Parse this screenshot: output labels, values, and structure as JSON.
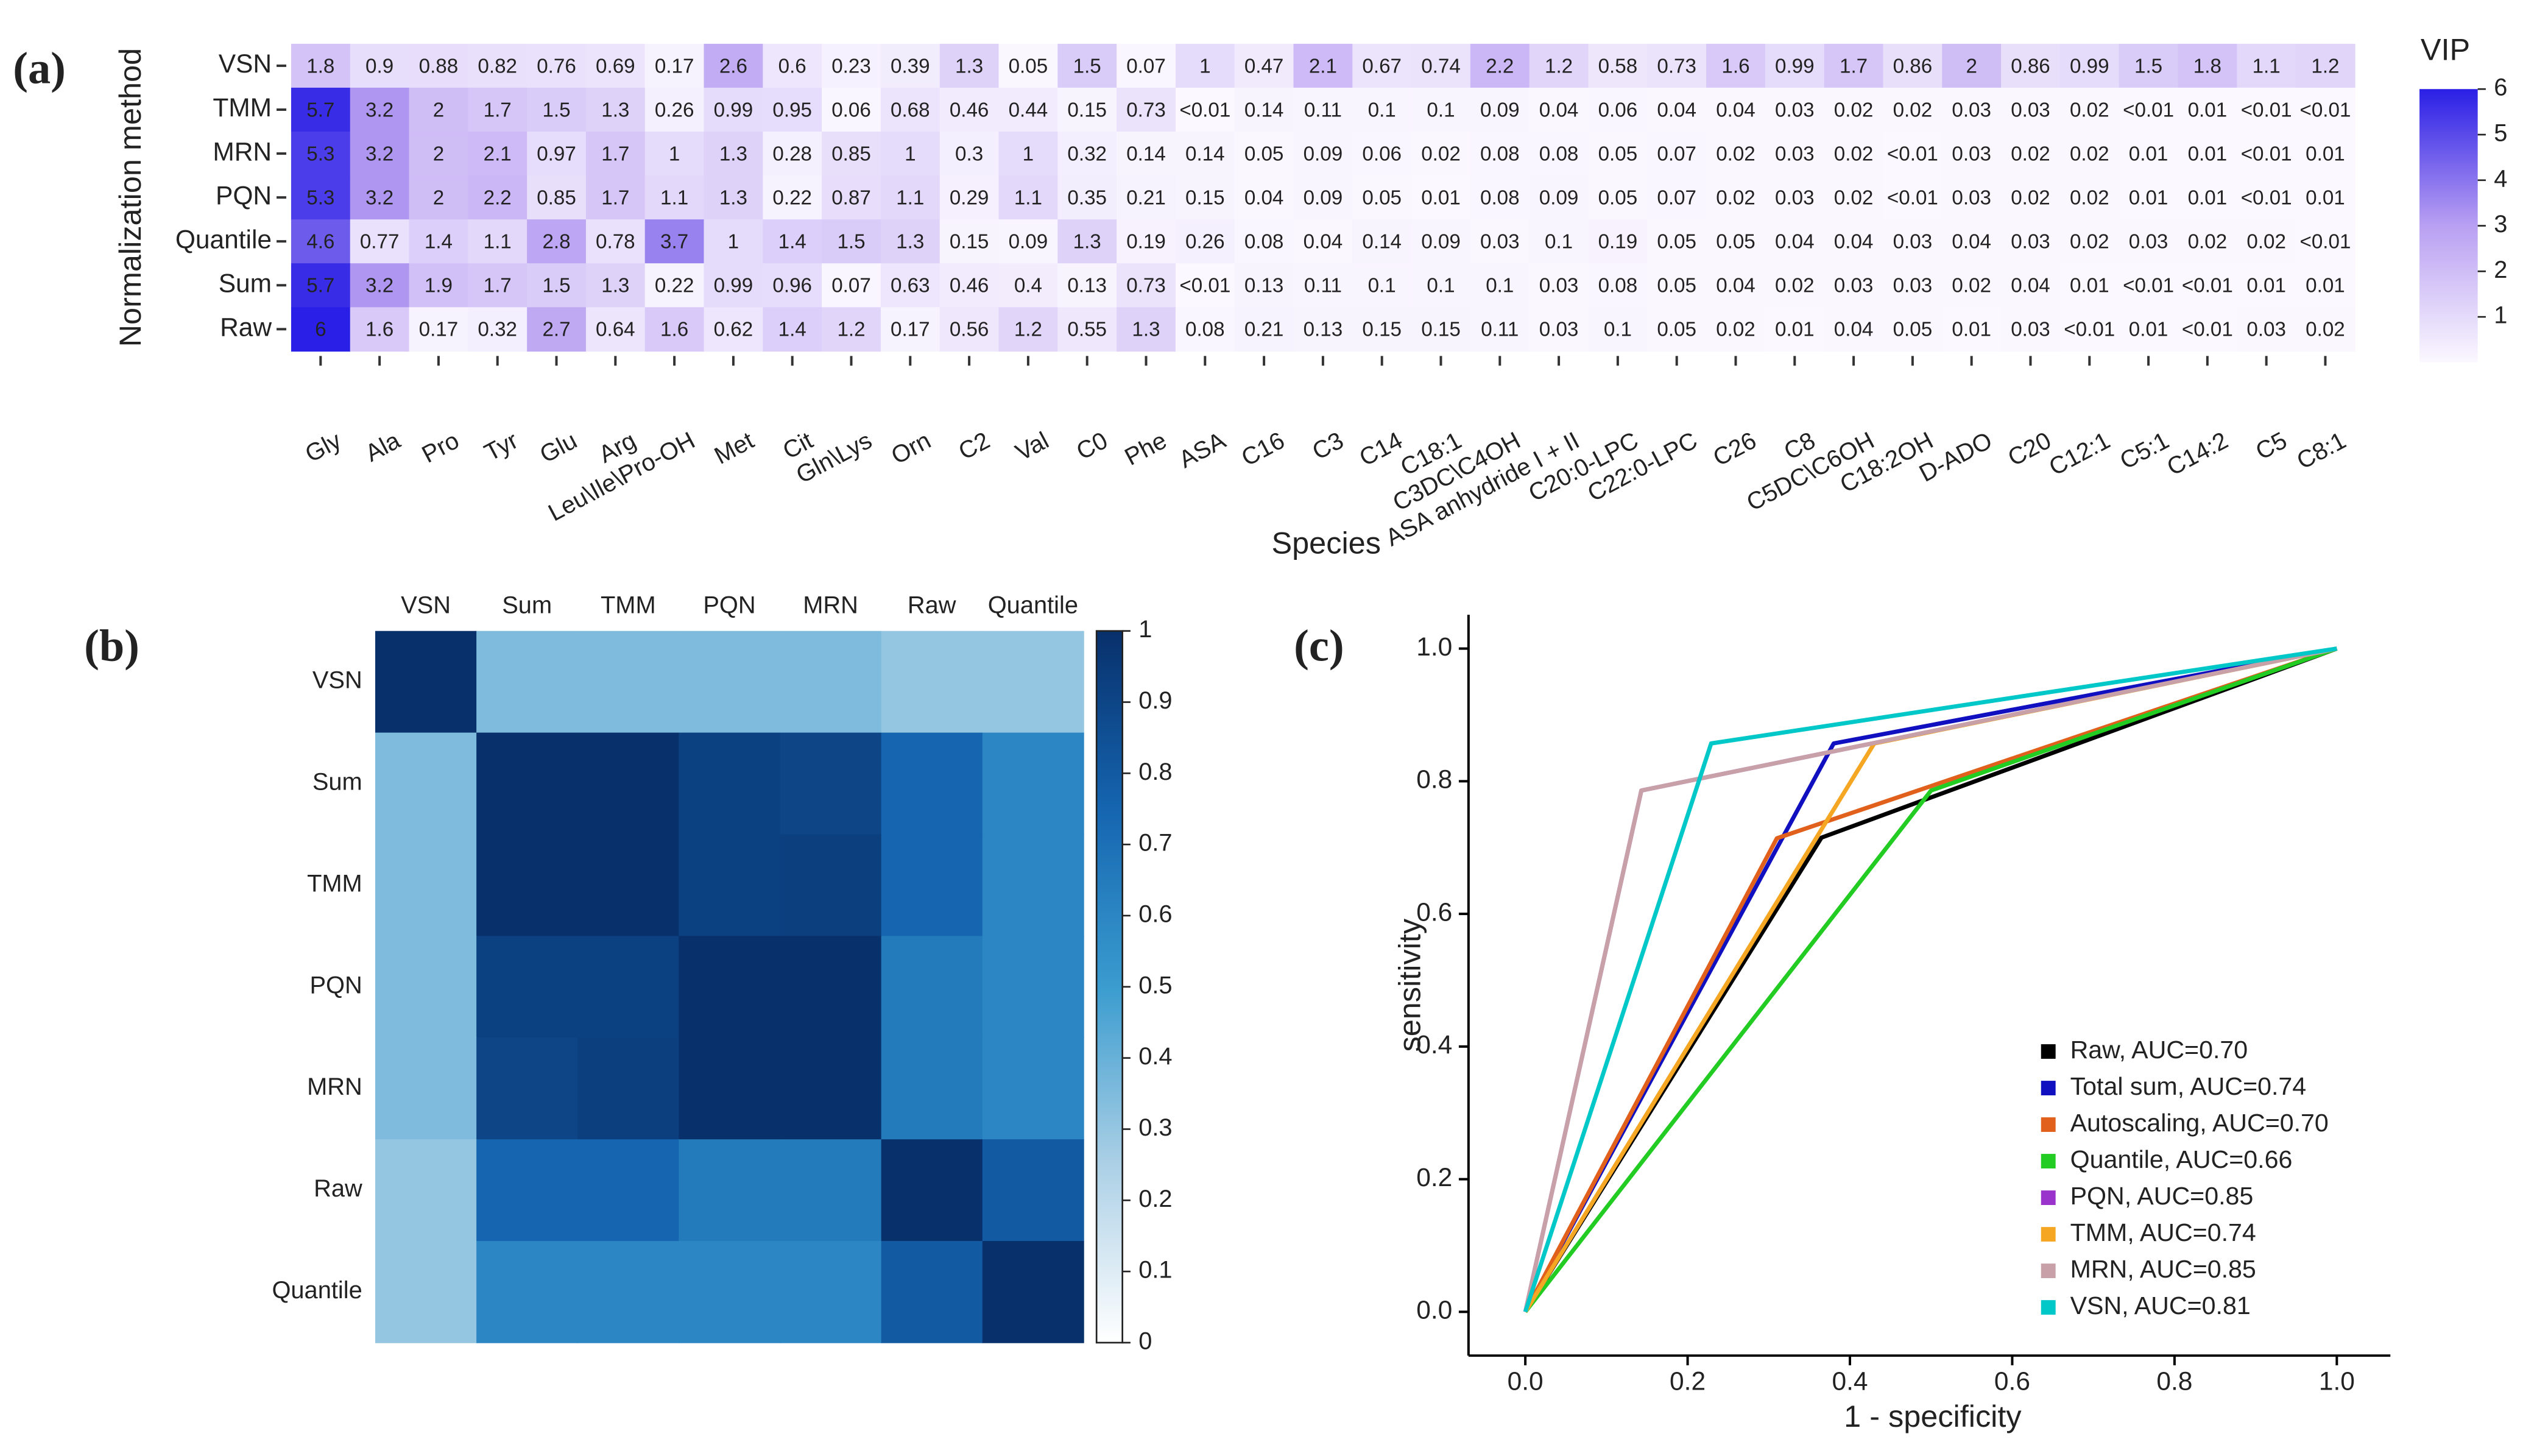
{
  "chart_data": [
    {
      "type": "heatmap",
      "panel_label": "(a)",
      "xlabel": "Species",
      "ylabel": "Normalization method",
      "rows": [
        "VSN",
        "TMM",
        "MRN",
        "PQN",
        "Quantile",
        "Sum",
        "Raw"
      ],
      "columns": [
        "Gly",
        "Ala",
        "Pro",
        "Tyr",
        "Glu",
        "Arg",
        "Leu\\Ile\\Pro-OH",
        "Met",
        "Cit",
        "Gln\\Lys",
        "Orn",
        "C2",
        "Val",
        "C0",
        "Phe",
        "ASA",
        "C16",
        "C3",
        "C14",
        "C18:1",
        "C3DC\\C4OH",
        "ASA anhydride I + II",
        "C20:0-LPC",
        "C22:0-LPC",
        "C26",
        "C8",
        "C5DC\\C6OH",
        "C18:2OH",
        "D-ADO",
        "C20",
        "C12:1",
        "C5:1",
        "C14:2",
        "C5",
        "C8:1"
      ],
      "values": [
        [
          1.8,
          0.9,
          0.88,
          0.82,
          0.76,
          0.69,
          0.17,
          2.6,
          0.6,
          0.23,
          0.39,
          1.3,
          0.05,
          1.5,
          0.07,
          1,
          0.47,
          2.1,
          0.67,
          0.74,
          2.2,
          1.2,
          0.58,
          0.73,
          1.6,
          0.99,
          1.7,
          0.86,
          2,
          0.86,
          0.99,
          1.5,
          1.8,
          1.1,
          1.2
        ],
        [
          5.7,
          3.2,
          2,
          1.7,
          1.5,
          1.3,
          0.26,
          0.99,
          0.95,
          0.06,
          0.68,
          0.46,
          0.44,
          0.15,
          0.73,
          0.01,
          0.14,
          0.11,
          0.1,
          0.1,
          0.09,
          0.04,
          0.06,
          0.04,
          0.04,
          0.03,
          0.02,
          0.02,
          0.03,
          0.03,
          0.02,
          0.01,
          0.01,
          0.01,
          0.01
        ],
        [
          5.3,
          3.2,
          2,
          2.1,
          0.97,
          1.7,
          1,
          1.3,
          0.28,
          0.85,
          1,
          0.3,
          1,
          0.32,
          0.14,
          0.14,
          0.05,
          0.09,
          0.06,
          0.02,
          0.08,
          0.08,
          0.05,
          0.07,
          0.02,
          0.03,
          0.02,
          0.01,
          0.03,
          0.02,
          0.02,
          0.01,
          0.01,
          0.01,
          0.01
        ],
        [
          5.3,
          3.2,
          2,
          2.2,
          0.85,
          1.7,
          1.1,
          1.3,
          0.22,
          0.87,
          1.1,
          0.29,
          1.1,
          0.35,
          0.21,
          0.15,
          0.04,
          0.09,
          0.05,
          0.01,
          0.08,
          0.09,
          0.05,
          0.07,
          0.02,
          0.03,
          0.02,
          0.01,
          0.03,
          0.02,
          0.02,
          0.01,
          0.01,
          0.01,
          0.01
        ],
        [
          4.6,
          0.77,
          1.4,
          1.1,
          2.8,
          0.78,
          3.7,
          1,
          1.4,
          1.5,
          1.3,
          0.15,
          0.09,
          1.3,
          0.19,
          0.26,
          0.08,
          0.04,
          0.14,
          0.09,
          0.03,
          0.1,
          0.19,
          0.05,
          0.05,
          0.04,
          0.04,
          0.03,
          0.04,
          0.03,
          0.02,
          0.03,
          0.02,
          0.02,
          0.01
        ],
        [
          5.7,
          3.2,
          1.9,
          1.7,
          1.5,
          1.3,
          0.22,
          0.99,
          0.96,
          0.07,
          0.63,
          0.46,
          0.4,
          0.13,
          0.73,
          0.01,
          0.13,
          0.11,
          0.1,
          0.1,
          0.1,
          0.03,
          0.08,
          0.05,
          0.04,
          0.02,
          0.03,
          0.03,
          0.02,
          0.04,
          0.01,
          0.01,
          0.01,
          0.01,
          0.01
        ],
        [
          6,
          1.6,
          0.17,
          0.32,
          2.7,
          0.64,
          1.6,
          0.62,
          1.4,
          1.2,
          0.17,
          0.56,
          1.2,
          0.55,
          1.3,
          0.08,
          0.21,
          0.13,
          0.15,
          0.15,
          0.11,
          0.03,
          0.1,
          0.05,
          0.02,
          0.01,
          0.04,
          0.05,
          0.01,
          0.03,
          0.01,
          0.01,
          0.01,
          0.03,
          0.02
        ]
      ],
      "value_labels": [
        [
          "1.8",
          "0.9",
          "0.88",
          "0.82",
          "0.76",
          "0.69",
          "0.17",
          "2.6",
          "0.6",
          "0.23",
          "0.39",
          "1.3",
          "0.05",
          "1.5",
          "0.07",
          "1",
          "0.47",
          "2.1",
          "0.67",
          "0.74",
          "2.2",
          "1.2",
          "0.58",
          "0.73",
          "1.6",
          "0.99",
          "1.7",
          "0.86",
          "2",
          "0.86",
          "0.99",
          "1.5",
          "1.8",
          "1.1",
          "1.2"
        ],
        [
          "5.7",
          "3.2",
          "2",
          "1.7",
          "1.5",
          "1.3",
          "0.26",
          "0.99",
          "0.95",
          "0.06",
          "0.68",
          "0.46",
          "0.44",
          "0.15",
          "0.73",
          "<0.01",
          "0.14",
          "0.11",
          "0.1",
          "0.1",
          "0.09",
          "0.04",
          "0.06",
          "0.04",
          "0.04",
          "0.03",
          "0.02",
          "0.02",
          "0.03",
          "0.03",
          "0.02",
          "<0.01",
          "0.01",
          "<0.01",
          "<0.01"
        ],
        [
          "5.3",
          "3.2",
          "2",
          "2.1",
          "0.97",
          "1.7",
          "1",
          "1.3",
          "0.28",
          "0.85",
          "1",
          "0.3",
          "1",
          "0.32",
          "0.14",
          "0.14",
          "0.05",
          "0.09",
          "0.06",
          "0.02",
          "0.08",
          "0.08",
          "0.05",
          "0.07",
          "0.02",
          "0.03",
          "0.02",
          "<0.01",
          "0.03",
          "0.02",
          "0.02",
          "0.01",
          "0.01",
          "<0.01",
          "0.01"
        ],
        [
          "5.3",
          "3.2",
          "2",
          "2.2",
          "0.85",
          "1.7",
          "1.1",
          "1.3",
          "0.22",
          "0.87",
          "1.1",
          "0.29",
          "1.1",
          "0.35",
          "0.21",
          "0.15",
          "0.04",
          "0.09",
          "0.05",
          "0.01",
          "0.08",
          "0.09",
          "0.05",
          "0.07",
          "0.02",
          "0.03",
          "0.02",
          "<0.01",
          "0.03",
          "0.02",
          "0.02",
          "0.01",
          "0.01",
          "<0.01",
          "0.01"
        ],
        [
          "4.6",
          "0.77",
          "1.4",
          "1.1",
          "2.8",
          "0.78",
          "3.7",
          "1",
          "1.4",
          "1.5",
          "1.3",
          "0.15",
          "0.09",
          "1.3",
          "0.19",
          "0.26",
          "0.08",
          "0.04",
          "0.14",
          "0.09",
          "0.03",
          "0.1",
          "0.19",
          "0.05",
          "0.05",
          "0.04",
          "0.04",
          "0.03",
          "0.04",
          "0.03",
          "0.02",
          "0.03",
          "0.02",
          "0.02",
          "<0.01"
        ],
        [
          "5.7",
          "3.2",
          "1.9",
          "1.7",
          "1.5",
          "1.3",
          "0.22",
          "0.99",
          "0.96",
          "0.07",
          "0.63",
          "0.46",
          "0.4",
          "0.13",
          "0.73",
          "<0.01",
          "0.13",
          "0.11",
          "0.1",
          "0.1",
          "0.1",
          "0.03",
          "0.08",
          "0.05",
          "0.04",
          "0.02",
          "0.03",
          "0.03",
          "0.02",
          "0.04",
          "0.01",
          "<0.01",
          "<0.01",
          "0.01",
          "0.01"
        ],
        [
          "6",
          "1.6",
          "0.17",
          "0.32",
          "2.7",
          "0.64",
          "1.6",
          "0.62",
          "1.4",
          "1.2",
          "0.17",
          "0.56",
          "1.2",
          "0.55",
          "1.3",
          "0.08",
          "0.21",
          "0.13",
          "0.15",
          "0.15",
          "0.11",
          "0.03",
          "0.1",
          "0.05",
          "0.02",
          "0.01",
          "0.04",
          "0.05",
          "0.01",
          "0.03",
          "<0.01",
          "0.01",
          "<0.01",
          "0.03",
          "0.02"
        ]
      ],
      "colorbar_title": "VIP",
      "clim": [
        0,
        6
      ],
      "cticks": [
        1,
        2,
        3,
        4,
        5,
        6
      ],
      "colorscale": [
        "#fbf8ff",
        "#b9a0f2",
        "#2a1fe6"
      ]
    },
    {
      "type": "heatmap",
      "panel_label": "(b)",
      "rows": [
        "VSN",
        "Sum",
        "TMM",
        "PQN",
        "MRN",
        "Raw",
        "Quantile"
      ],
      "columns": [
        "VSN",
        "Sum",
        "TMM",
        "PQN",
        "MRN",
        "Raw",
        "Quantile"
      ],
      "values": [
        [
          1,
          0.35,
          0.35,
          0.35,
          0.35,
          0.3,
          0.3
        ],
        [
          0.35,
          1,
          1,
          0.92,
          0.9,
          0.75,
          0.6
        ],
        [
          0.35,
          1,
          1,
          0.92,
          0.93,
          0.75,
          0.6
        ],
        [
          0.35,
          0.92,
          0.92,
          1,
          1,
          0.65,
          0.6
        ],
        [
          0.35,
          0.9,
          0.93,
          1,
          1,
          0.65,
          0.6
        ],
        [
          0.3,
          0.75,
          0.75,
          0.65,
          0.65,
          1,
          0.8
        ],
        [
          0.3,
          0.6,
          0.6,
          0.6,
          0.6,
          0.8,
          1
        ]
      ],
      "clim": [
        0,
        1
      ],
      "cticks": [
        0,
        0.1,
        0.2,
        0.3,
        0.4,
        0.5,
        0.6,
        0.7,
        0.8,
        0.9,
        1
      ],
      "colorscale": [
        "#ffffff",
        "#acd0e6",
        "#3a9ccf",
        "#1565b0",
        "#08306b"
      ]
    },
    {
      "type": "line",
      "panel_label": "(c)",
      "xlabel": "1 - specificity",
      "ylabel": "sensitivity",
      "xlim": [
        -0.07,
        1.066
      ],
      "ylim": [
        -0.066,
        1.051
      ],
      "xticks": [
        {
          "value": 0,
          "label": "0.0"
        },
        0.2,
        0.4,
        0.6,
        0.8,
        {
          "value": 1,
          "label": "1.0"
        }
      ],
      "yticks": [
        {
          "value": 0,
          "label": "0.0"
        },
        0.2,
        0.4,
        0.6,
        0.8,
        {
          "value": 1,
          "label": "1.0"
        }
      ],
      "legend": "lower right",
      "series": [
        {
          "name": "Raw, AUC=0.70",
          "color": "#000000",
          "x": [
            0,
            0.365,
            1
          ],
          "y": [
            0,
            0.715,
            1
          ]
        },
        {
          "name": "Total sum, AUC=0.74",
          "color": "#1010c0",
          "x": [
            0,
            0.38,
            1
          ],
          "y": [
            0,
            0.857,
            1
          ]
        },
        {
          "name": "Autoscaling, AUC=0.70",
          "color": "#e0601c",
          "x": [
            0,
            0.31,
            1
          ],
          "y": [
            0,
            0.714,
            1
          ]
        },
        {
          "name": "Quantile, AUC=0.66",
          "color": "#22cc22",
          "x": [
            0,
            0.5,
            1
          ],
          "y": [
            0,
            0.786,
            1
          ]
        },
        {
          "name": "PQN, AUC=0.85",
          "color": "#9933cc",
          "x": [
            0,
            0.143,
            1
          ],
          "y": [
            0,
            0.786,
            1
          ]
        },
        {
          "name": "TMM, AUC=0.74",
          "color": "#f5a623",
          "x": [
            0,
            0.43,
            1
          ],
          "y": [
            0,
            0.857,
            1
          ]
        },
        {
          "name": "MRN, AUC=0.85",
          "color": "#c8a0a8",
          "x": [
            0,
            0.143,
            1
          ],
          "y": [
            0,
            0.786,
            1
          ]
        },
        {
          "name": "VSN, AUC=0.81",
          "color": "#00c8c8",
          "x": [
            0,
            0.229,
            1
          ],
          "y": [
            0,
            0.857,
            1
          ]
        }
      ]
    }
  ]
}
